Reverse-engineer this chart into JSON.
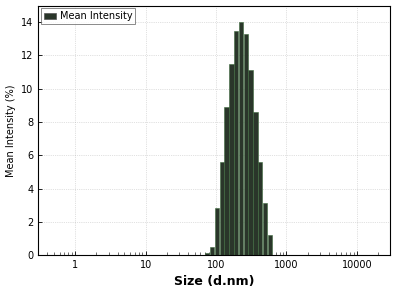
{
  "title": "",
  "xlabel": "Size (d.nm)",
  "ylabel": "Mean Intensity (%)",
  "legend_label": "Mean Intensity",
  "xlim_log": [
    0.3,
    30000
  ],
  "ylim": [
    0,
    15
  ],
  "yticks": [
    0,
    2,
    4,
    6,
    8,
    10,
    12,
    14
  ],
  "xticks": [
    1,
    10,
    100,
    1000,
    10000
  ],
  "xtick_labels": [
    "1",
    "10",
    "100",
    "1000",
    "10000"
  ],
  "bar_color": "#2a362a",
  "bar_edge_color": "#3d6b3d",
  "background_color": "#ffffff",
  "sizes": [
    75,
    88,
    103,
    121,
    141,
    166,
    194,
    227,
    266,
    311,
    364,
    426,
    499,
    584
  ],
  "intensities": [
    0.15,
    0.5,
    2.8,
    5.6,
    8.9,
    11.5,
    13.5,
    14.0,
    13.3,
    11.1,
    8.6,
    5.6,
    3.1,
    1.2
  ]
}
